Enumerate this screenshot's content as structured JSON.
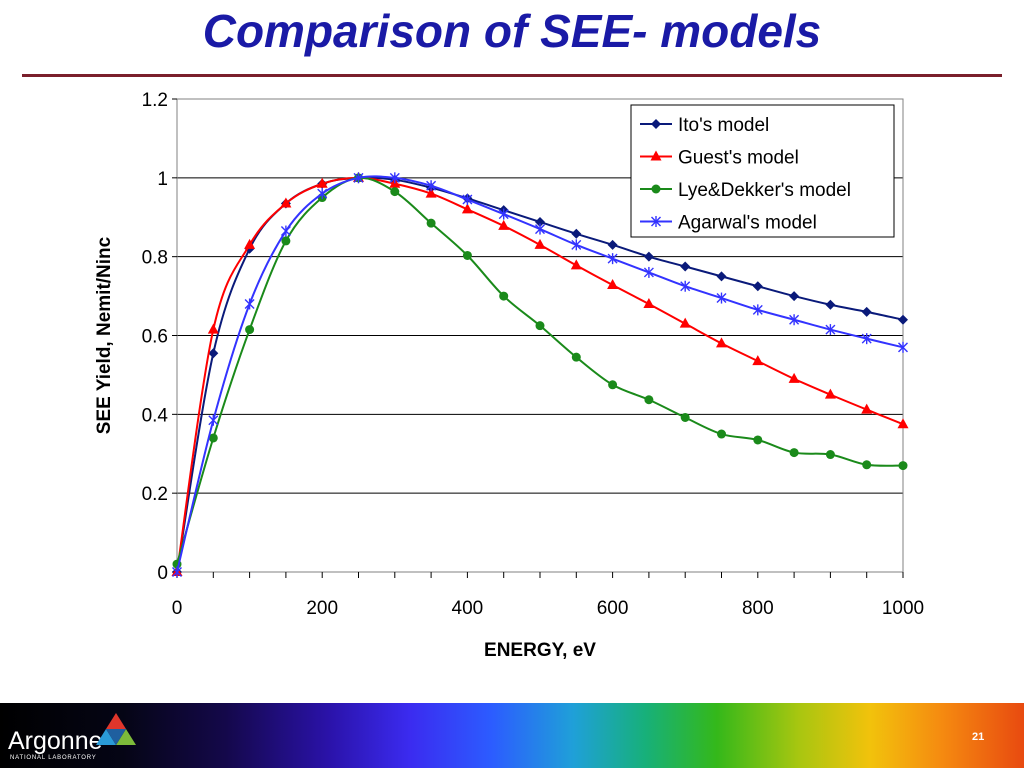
{
  "slide": {
    "title": "Comparison of SEE- models",
    "page_number": "21",
    "logo": {
      "name": "Argonne",
      "subtitle": "NATIONAL LABORATORY"
    }
  },
  "colors": {
    "title": "#1a1aa6",
    "rule": "#7a1f2b",
    "ito": "#0a1a7a",
    "guest": "#ff0000",
    "lye": "#1a8a1a",
    "agarwal": "#3333ff"
  },
  "chart_data": {
    "type": "line",
    "title": "",
    "xlabel": "ENERGY, eV",
    "ylabel": "SEE Yield, Nemit/Ninc",
    "xlim": [
      0,
      1000
    ],
    "ylim": [
      0,
      1.2
    ],
    "x_ticks": [
      "0",
      "200",
      "400",
      "600",
      "800",
      "1000"
    ],
    "y_ticks": [
      "0",
      "0.2",
      "0.4",
      "0.6",
      "0.8",
      "1",
      "1.2"
    ],
    "grid": "horizontal",
    "legend_position": "top-right",
    "x": [
      0,
      50,
      100,
      150,
      200,
      250,
      300,
      350,
      400,
      450,
      500,
      550,
      600,
      650,
      700,
      750,
      800,
      850,
      900,
      950,
      1000
    ],
    "series": [
      {
        "name": "Ito's model",
        "marker": "diamond",
        "color": "#0a1a7a",
        "values": [
          0.0,
          0.555,
          0.82,
          0.935,
          0.985,
          1.0,
          0.995,
          0.975,
          0.948,
          0.918,
          0.888,
          0.858,
          0.83,
          0.8,
          0.775,
          0.75,
          0.725,
          0.7,
          0.678,
          0.66,
          0.64
        ]
      },
      {
        "name": "Guest's model",
        "marker": "triangle",
        "color": "#ff0000",
        "values": [
          0.0,
          0.615,
          0.83,
          0.935,
          0.985,
          1.0,
          0.985,
          0.96,
          0.92,
          0.878,
          0.83,
          0.778,
          0.728,
          0.68,
          0.63,
          0.58,
          0.535,
          0.49,
          0.45,
          0.412,
          0.375
        ]
      },
      {
        "name": "Lye&Dekker's model",
        "marker": "circle",
        "color": "#1a8a1a",
        "values": [
          0.02,
          0.34,
          0.615,
          0.84,
          0.95,
          1.0,
          0.965,
          0.885,
          0.803,
          0.7,
          0.625,
          0.545,
          0.475,
          0.437,
          0.392,
          0.35,
          0.335,
          0.303,
          0.298,
          0.272,
          0.27
        ]
      },
      {
        "name": "Agarwal's model",
        "marker": "star",
        "color": "#3333ff",
        "values": [
          0.0,
          0.385,
          0.68,
          0.865,
          0.96,
          1.0,
          1.0,
          0.98,
          0.945,
          0.908,
          0.87,
          0.83,
          0.795,
          0.76,
          0.725,
          0.695,
          0.665,
          0.64,
          0.615,
          0.592,
          0.57
        ]
      }
    ]
  }
}
